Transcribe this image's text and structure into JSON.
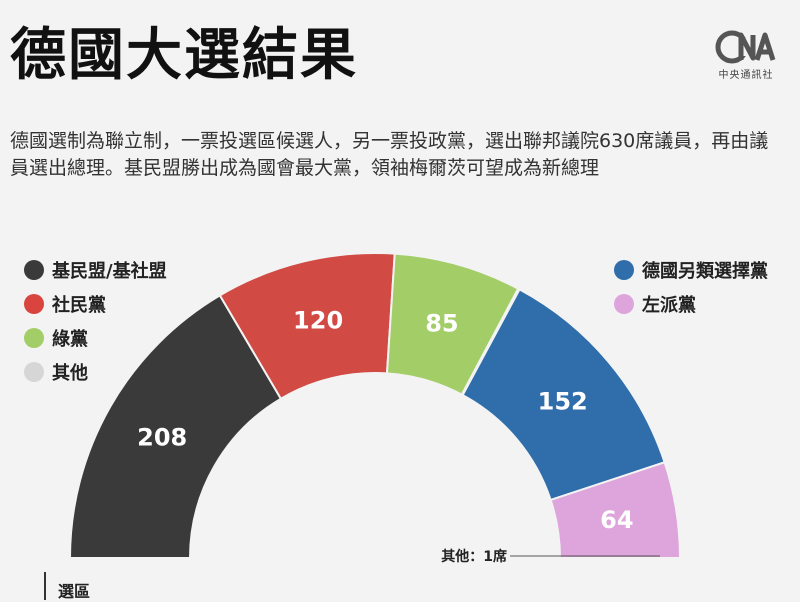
{
  "header": {
    "title": "德國大選結果",
    "subtitle": "德國選制為聯立制，一票投選區候選人，另一票投政黨，選出聯邦議院630席議員，再由議員選出總理。基民盟勝出成為國會最大黨，領袖梅爾茨可望成為新總理"
  },
  "logo": {
    "mark": "CNA",
    "sub": "中央通訊社"
  },
  "legend": {
    "left": [
      {
        "label": "基民盟/基社盟",
        "color": "#3a3a3a"
      },
      {
        "label": "社民黨",
        "color": "#d9443f"
      },
      {
        "label": "綠黨",
        "color": "#a3cd66"
      },
      {
        "label": "其他",
        "color": "#d6d6d6"
      }
    ],
    "right": [
      {
        "label": "德國另類選擇黨",
        "color": "#2f6dab"
      },
      {
        "label": "左派黨",
        "color": "#dea4dc"
      }
    ]
  },
  "chart_data": {
    "type": "pie",
    "subtype": "half-donut parliament seats",
    "total": 630,
    "series": [
      {
        "name": "基民盟/基社盟",
        "value": 208,
        "color": "#3a3a3a"
      },
      {
        "name": "社民黨",
        "value": 120,
        "color": "#d14a44"
      },
      {
        "name": "綠黨",
        "value": 85,
        "color": "#a3cd66"
      },
      {
        "name": "其他",
        "value": 1,
        "color": "#d6d6d6"
      },
      {
        "name": "德國另類選擇黨",
        "value": 152,
        "color": "#2f6dab"
      },
      {
        "name": "左派黨",
        "value": 64,
        "color": "#dea4dc"
      }
    ],
    "annotation": "其他：1席"
  },
  "footer": {
    "district_label": "選區"
  }
}
